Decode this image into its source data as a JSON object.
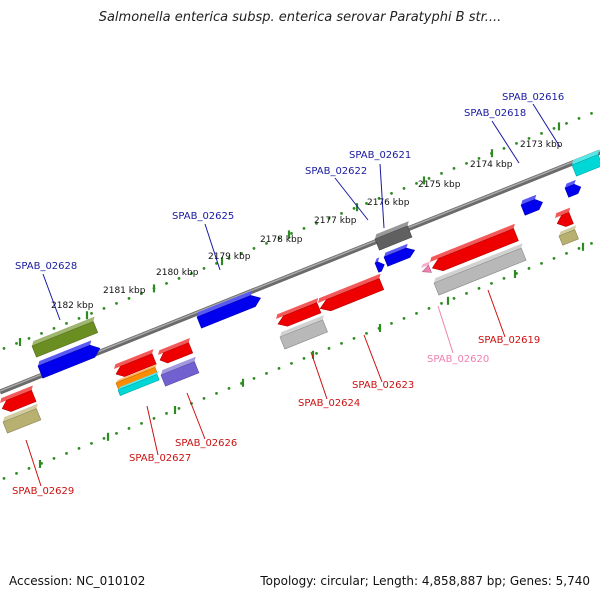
{
  "title": "Salmonella enterica subsp. enterica serovar Paratyphi B str....",
  "footer": {
    "accession": "Accession: NC_010102",
    "topology": "Topology: circular; Length: 4,858,887 bp; Genes: 5,740"
  },
  "colors": {
    "backbone": "#808080",
    "ruler_dots": "#2e8b22",
    "forward_label": "#1a1aa0",
    "reverse_label": "#cc1111",
    "pseudo_label": "#f080b0"
  },
  "scale": {
    "ticks": [
      "2173 kbp",
      "2174 kbp",
      "2175 kbp",
      "2176 kbp",
      "2177 kbp",
      "2178 kbp",
      "2179 kbp",
      "2180 kbp",
      "2181 kbp",
      "2182 kbp"
    ]
  },
  "features": [
    {
      "strand": "+",
      "color": "#6b8e23",
      "label": ""
    },
    {
      "strand": "+",
      "color": "#0000ee",
      "label": "SPAB_02628"
    },
    {
      "strand": "+",
      "color": "#0000ee",
      "label": "SPAB_02625"
    },
    {
      "strand": "+",
      "color": "#606060",
      "label": ""
    },
    {
      "strand": "+",
      "color": "#0000ee",
      "label": "SPAB_02621"
    },
    {
      "strand": "+",
      "color": "#0000ee",
      "label": "SPAB_02622"
    },
    {
      "strand": "+",
      "color": "#0000ee",
      "label": "SPAB_02618"
    },
    {
      "strand": "+",
      "color": "#0000ee",
      "label": ""
    },
    {
      "strand": "+",
      "color": "#00d8d8",
      "label": "SPAB_02616"
    },
    {
      "strand": "-",
      "color": "#ee0000",
      "label": "SPAB_02629"
    },
    {
      "strand": "-",
      "color": "#b8b070",
      "label": ""
    },
    {
      "strand": "-",
      "color": "#ee0000",
      "label": "SPAB_02627"
    },
    {
      "strand": "-",
      "color": "#ff8c00",
      "label": ""
    },
    {
      "strand": "-",
      "color": "#00d8d8",
      "label": ""
    },
    {
      "strand": "-",
      "color": "#ee0000",
      "label": ""
    },
    {
      "strand": "-",
      "color": "#7060d0",
      "label": "SPAB_02626"
    },
    {
      "strand": "-",
      "color": "#ee0000",
      "label": "SPAB_02624"
    },
    {
      "strand": "-",
      "color": "#b8b8b8",
      "label": ""
    },
    {
      "strand": "-",
      "color": "#ee0000",
      "label": "SPAB_02623"
    },
    {
      "strand": "-",
      "color": "#f080b0",
      "label": "SPAB_02620"
    },
    {
      "strand": "-",
      "color": "#ee0000",
      "label": "SPAB_02619"
    },
    {
      "strand": "-",
      "color": "#b8b8b8",
      "label": ""
    },
    {
      "strand": "-",
      "color": "#ee0000",
      "label": ""
    },
    {
      "strand": "-",
      "color": "#b8b070",
      "label": ""
    }
  ]
}
